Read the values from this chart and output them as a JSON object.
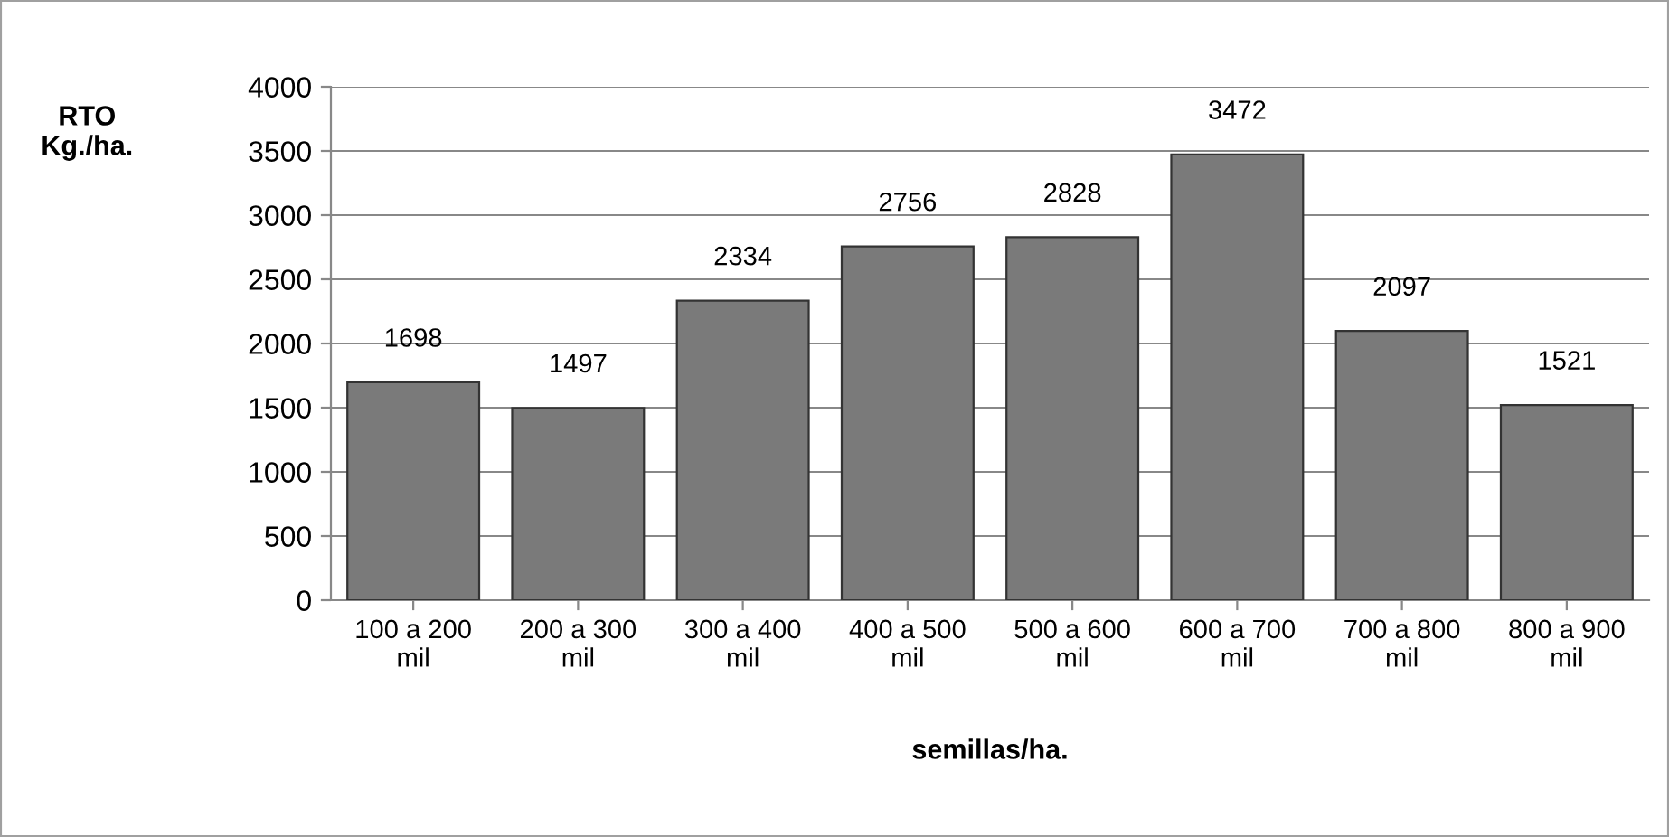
{
  "chart_data": {
    "type": "bar",
    "xlabel": "semillas/ha.",
    "ylabel": "RTO\nKg./ha.",
    "categories": [
      "100 a 200\nmil",
      "200 a 300\nmil",
      "300 a 400\nmil",
      "400 a 500\nmil",
      "500 a 600\nmil",
      "600 a 700\nmil",
      "700 a 800\nmil",
      "800 a 900\nmil"
    ],
    "values": [
      1698,
      1497,
      2334,
      2756,
      2828,
      3472,
      2097,
      1521
    ],
    "color": "#7a7a7a",
    "ylim": [
      0,
      4000
    ],
    "yticks": [
      0,
      500,
      1000,
      1500,
      2000,
      2500,
      3000,
      3500,
      4000
    ],
    "grid": "y",
    "data_labels": true,
    "legend": false
  }
}
